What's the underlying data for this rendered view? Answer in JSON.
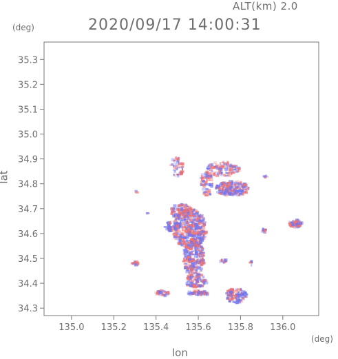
{
  "header": {
    "altitude_label": "ALT(km) 2.0",
    "datetime_label": "2020/09/17 14:00:31"
  },
  "chart_data": {
    "type": "scatter",
    "xlabel": "lon",
    "ylabel": "lat",
    "x_unit": "(deg)",
    "y_unit": "(deg)",
    "xlim": [
      134.87,
      136.17
    ],
    "ylim": [
      34.27,
      35.37
    ],
    "xticks": [
      {
        "value": 135.0,
        "label": "135.0"
      },
      {
        "value": 135.2,
        "label": "135.2"
      },
      {
        "value": 135.4,
        "label": "135.4"
      },
      {
        "value": 135.6,
        "label": "135.6"
      },
      {
        "value": 135.8,
        "label": "135.8"
      },
      {
        "value": 136.0,
        "label": "136.0"
      }
    ],
    "yticks": [
      {
        "value": 34.3,
        "label": "34.3"
      },
      {
        "value": 34.4,
        "label": "34.4"
      },
      {
        "value": 34.5,
        "label": "34.5"
      },
      {
        "value": 34.6,
        "label": "34.6"
      },
      {
        "value": 34.7,
        "label": "34.7"
      },
      {
        "value": 34.8,
        "label": "34.8"
      },
      {
        "value": 34.9,
        "label": "34.9"
      },
      {
        "value": 35.0,
        "label": "35.0"
      },
      {
        "value": 35.1,
        "label": "35.1"
      },
      {
        "value": 35.2,
        "label": "35.2"
      },
      {
        "value": 35.3,
        "label": "35.3"
      }
    ],
    "grid": false,
    "colors": {
      "toward": "#6f74f0",
      "away": "#f07070",
      "axis": "#777777"
    },
    "clusters": [
      {
        "lon": 135.56,
        "lat": 34.62,
        "r_lon": 0.08,
        "r_lat": 0.08,
        "n": 420
      },
      {
        "lon": 135.58,
        "lat": 34.5,
        "r_lon": 0.05,
        "r_lat": 0.07,
        "n": 220
      },
      {
        "lon": 135.59,
        "lat": 34.41,
        "r_lon": 0.05,
        "r_lat": 0.03,
        "n": 110
      },
      {
        "lon": 135.52,
        "lat": 34.69,
        "r_lon": 0.05,
        "r_lat": 0.03,
        "n": 90
      },
      {
        "lon": 135.48,
        "lat": 34.63,
        "r_lon": 0.04,
        "r_lat": 0.02,
        "n": 60
      },
      {
        "lon": 135.76,
        "lat": 34.78,
        "r_lon": 0.08,
        "r_lat": 0.03,
        "n": 190
      },
      {
        "lon": 135.72,
        "lat": 34.86,
        "r_lon": 0.08,
        "r_lat": 0.03,
        "n": 120
      },
      {
        "lon": 135.64,
        "lat": 34.8,
        "r_lon": 0.03,
        "r_lat": 0.05,
        "n": 60
      },
      {
        "lon": 135.5,
        "lat": 34.87,
        "r_lon": 0.03,
        "r_lat": 0.04,
        "n": 50
      },
      {
        "lon": 135.78,
        "lat": 34.35,
        "r_lon": 0.05,
        "r_lat": 0.03,
        "n": 110
      },
      {
        "lon": 135.6,
        "lat": 34.36,
        "r_lon": 0.05,
        "r_lat": 0.01,
        "n": 50
      },
      {
        "lon": 135.43,
        "lat": 34.36,
        "r_lon": 0.04,
        "r_lat": 0.01,
        "n": 30
      },
      {
        "lon": 136.06,
        "lat": 34.64,
        "r_lon": 0.03,
        "r_lat": 0.015,
        "n": 60
      },
      {
        "lon": 135.3,
        "lat": 34.48,
        "r_lon": 0.015,
        "r_lat": 0.008,
        "n": 18
      },
      {
        "lon": 135.91,
        "lat": 34.61,
        "r_lon": 0.012,
        "r_lat": 0.01,
        "n": 12
      },
      {
        "lon": 135.72,
        "lat": 34.49,
        "r_lon": 0.015,
        "r_lat": 0.008,
        "n": 12
      },
      {
        "lon": 135.85,
        "lat": 34.48,
        "r_lon": 0.008,
        "r_lat": 0.008,
        "n": 6
      },
      {
        "lon": 135.31,
        "lat": 34.77,
        "r_lon": 0.005,
        "r_lat": 0.005,
        "n": 2
      },
      {
        "lon": 135.36,
        "lat": 34.68,
        "r_lon": 0.005,
        "r_lat": 0.005,
        "n": 2
      },
      {
        "lon": 135.92,
        "lat": 34.83,
        "r_lon": 0.006,
        "r_lat": 0.006,
        "n": 4
      }
    ]
  }
}
